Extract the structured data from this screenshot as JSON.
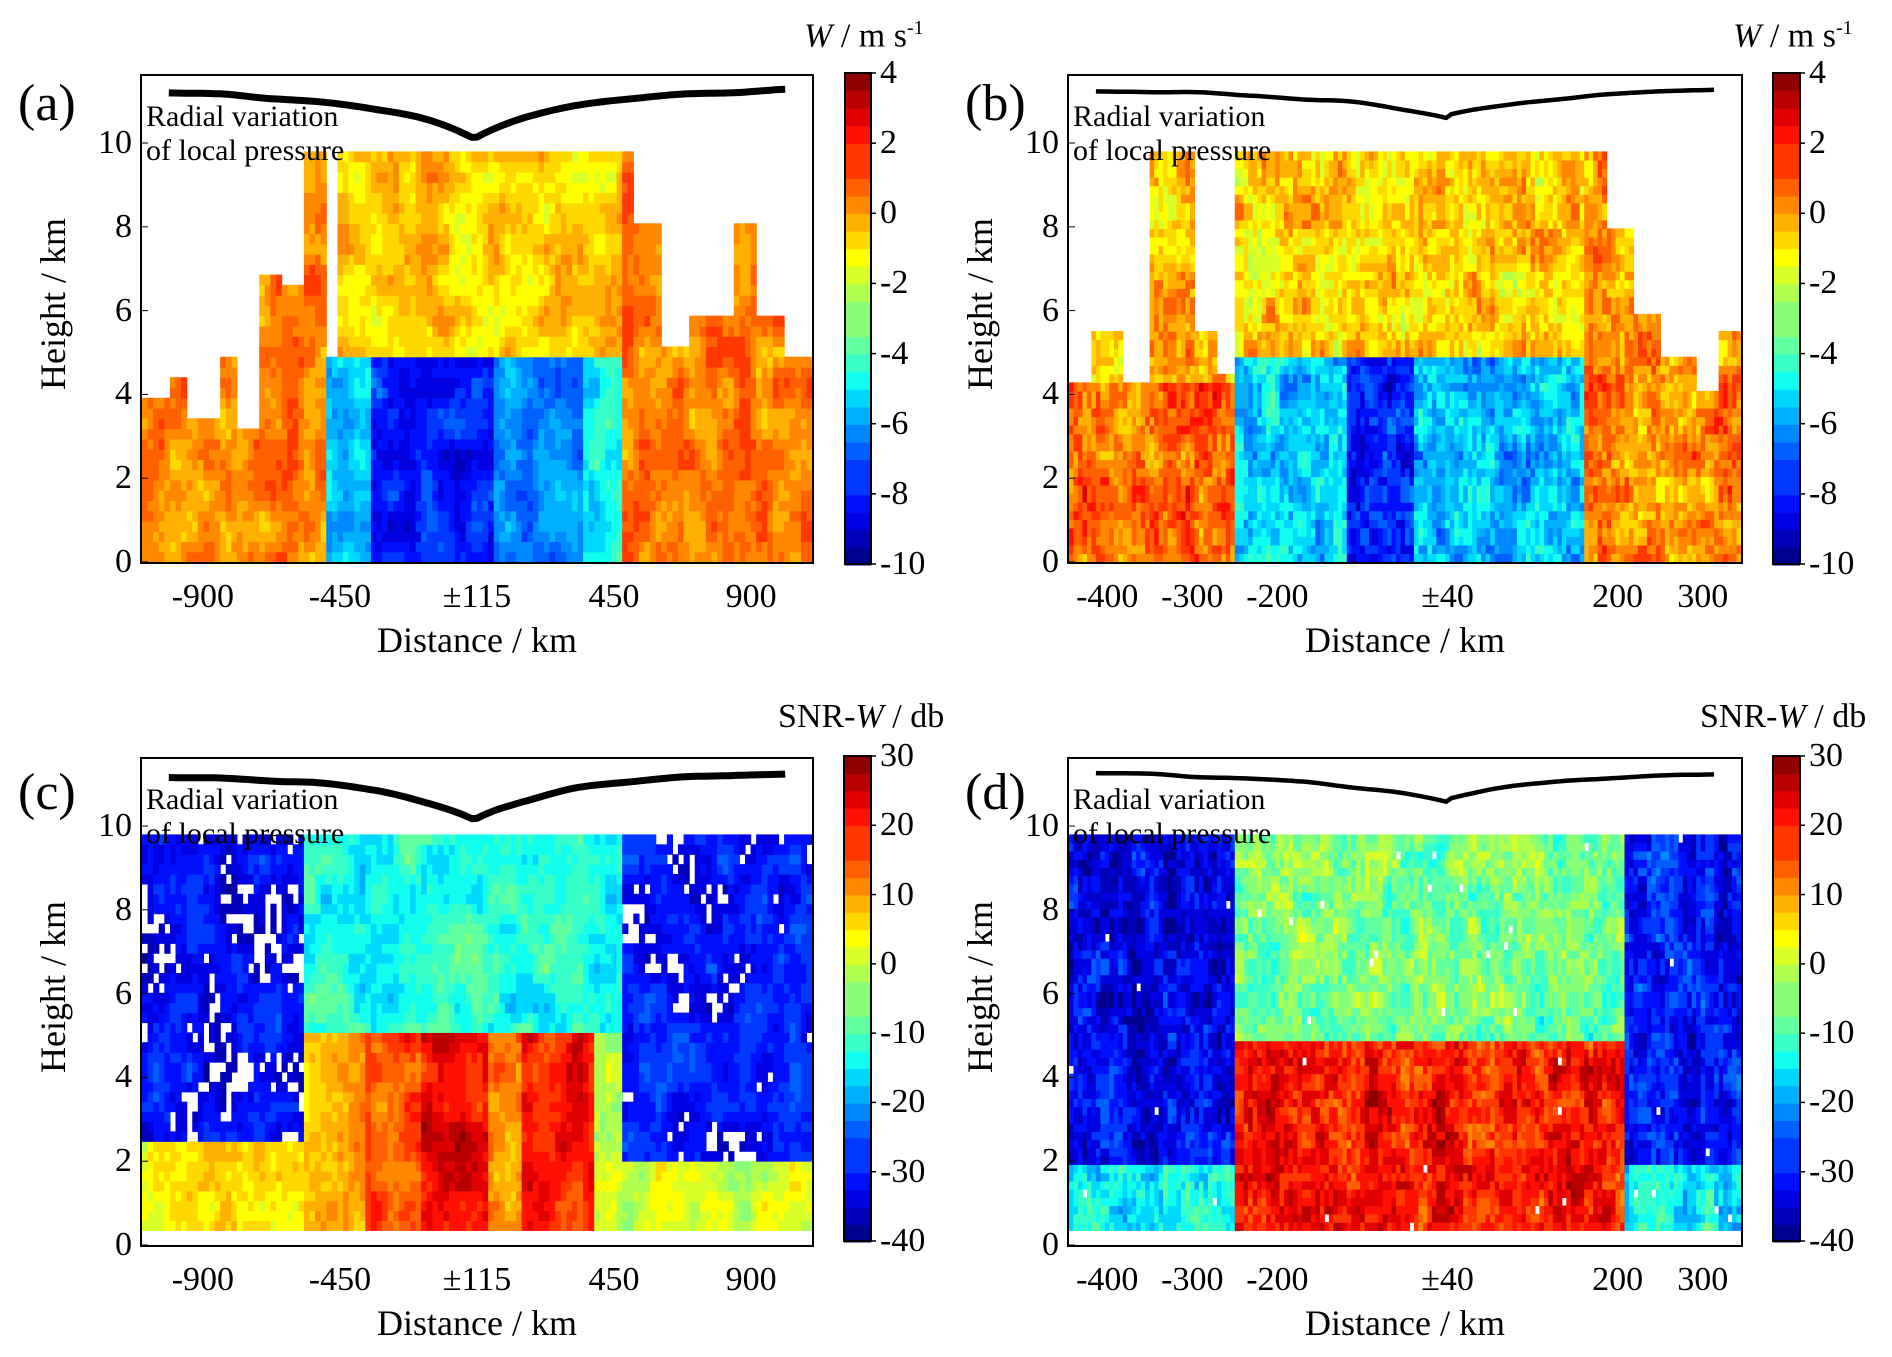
{
  "figure": {
    "panels": [
      "a",
      "b",
      "c",
      "d"
    ]
  },
  "chart_data": [
    {
      "id": "a",
      "type": "heatmap",
      "panel_label": "(a)",
      "annotation": [
        "Radial variation",
        "of local pressure"
      ],
      "xlabel": "Distance / km",
      "ylabel": "Height / km",
      "xticks": [
        "-900",
        "-450",
        "±115",
        "450",
        "900"
      ],
      "xtick_values": [
        -900,
        -450,
        0,
        450,
        900
      ],
      "xlim": [
        -1100,
        1100
      ],
      "yticks": [
        "0",
        "2",
        "4",
        "6",
        "8",
        "10"
      ],
      "ylim": [
        0,
        11.6
      ],
      "data_top_km": 9.8,
      "colorbar": {
        "title_var": "W",
        "title_units": " / m s",
        "title_sup": "-1",
        "ticks": [
          "4",
          "2",
          "0",
          "-2",
          "-4",
          "-6",
          "-8",
          "-10"
        ],
        "range": [
          -10,
          4
        ]
      },
      "style": "smooth",
      "background_value": 0.0,
      "value_regions": [
        {
          "x": [
            -1100,
            -500
          ],
          "y": [
            0,
            9.8
          ],
          "value": 0.4,
          "note": "orange updraft/weak flow outer left"
        },
        {
          "x": [
            -500,
            -350
          ],
          "y": [
            0,
            5
          ],
          "value": -5.5,
          "note": "cyan downward"
        },
        {
          "x": [
            -350,
            60
          ],
          "y": [
            0,
            5
          ],
          "value": -7.8,
          "note": "blue strong downward core"
        },
        {
          "x": [
            60,
            340
          ],
          "y": [
            0,
            5
          ],
          "value": -6.2
        },
        {
          "x": [
            340,
            470
          ],
          "y": [
            0,
            5
          ],
          "value": -4.8
        },
        {
          "x": [
            -500,
            470
          ],
          "y": [
            5,
            9.8
          ],
          "value": -0.6,
          "note": "yellow-orange aloft"
        },
        {
          "x": [
            470,
            1100
          ],
          "y": [
            0,
            9.8
          ],
          "value": 0.5,
          "note": "orange outer right"
        }
      ],
      "missing_ceiling_km": [
        {
          "x": -1100,
          "top": 3.9
        },
        {
          "x": -1000,
          "top": 4.4
        },
        {
          "x": -950,
          "top": 3.4
        },
        {
          "x": -850,
          "top": 5.0
        },
        {
          "x": -780,
          "top": 3.1
        },
        {
          "x": -720,
          "top": 6.8
        },
        {
          "x": -640,
          "top": 6.5
        },
        {
          "x": -560,
          "top": 9.8
        },
        {
          "x": -500,
          "top": 5.0
        },
        {
          "x": -450,
          "top": 9.8
        },
        {
          "x": 470,
          "top": 9.8
        },
        {
          "x": 520,
          "top": 8.0
        },
        {
          "x": 600,
          "top": 5.2
        },
        {
          "x": 700,
          "top": 5.8
        },
        {
          "x": 850,
          "top": 8.1
        },
        {
          "x": 920,
          "top": 6.0
        },
        {
          "x": 1000,
          "top": 5.0
        }
      ],
      "pressure_curve": {
        "min_x": 0,
        "shape": "V-shaped dip centered near ±115 km"
      }
    },
    {
      "id": "b",
      "type": "heatmap",
      "panel_label": "(b)",
      "annotation": [
        "Radial variation",
        "of local pressure"
      ],
      "xlabel": "Distance / km",
      "ylabel": "Height / km",
      "xticks": [
        "-400",
        "-300",
        "-200",
        "±40",
        "200",
        "300"
      ],
      "xtick_values": [
        -400,
        -300,
        -200,
        0,
        200,
        300
      ],
      "xlim": [
        -445,
        345
      ],
      "yticks": [
        "0",
        "2",
        "4",
        "6",
        "8",
        "10"
      ],
      "ylim": [
        0,
        11.6
      ],
      "data_top_km": 9.8,
      "colorbar": {
        "title_var": "W",
        "title_units": " / m s",
        "title_sup": "-1",
        "ticks": [
          "4",
          "2",
          "0",
          "-2",
          "-4",
          "-6",
          "-8",
          "-10"
        ],
        "range": [
          -10,
          4
        ]
      },
      "style": "blocky",
      "value_regions": [
        {
          "x": [
            -445,
            -250
          ],
          "y": [
            0,
            4.3
          ],
          "value": 0.8,
          "note": "orange-red lower left"
        },
        {
          "x": [
            -445,
            -250
          ],
          "y": [
            4.3,
            9.8
          ],
          "value": -0.6
        },
        {
          "x": [
            -250,
            -120
          ],
          "y": [
            0,
            4.8
          ],
          "value": -5.3,
          "note": "cyan"
        },
        {
          "x": [
            -120,
            -40
          ],
          "y": [
            0,
            4.8
          ],
          "value": -8.2,
          "note": "blue core"
        },
        {
          "x": [
            -40,
            160
          ],
          "y": [
            0,
            4.8
          ],
          "value": -5.8
        },
        {
          "x": [
            -250,
            160
          ],
          "y": [
            4.8,
            9.8
          ],
          "value": -0.7,
          "note": "yellow-orange aloft"
        },
        {
          "x": [
            160,
            345
          ],
          "y": [
            0,
            9.8
          ],
          "value": 0.3,
          "note": "orange right"
        }
      ],
      "missing_ceiling_km": [
        {
          "x": -445,
          "top": 4.2
        },
        {
          "x": -420,
          "top": 5.6
        },
        {
          "x": -380,
          "top": 4.3
        },
        {
          "x": -350,
          "top": 9.7
        },
        {
          "x": -300,
          "top": 5.6
        },
        {
          "x": -270,
          "top": 4.5
        },
        {
          "x": -250,
          "top": 9.8
        },
        {
          "x": 170,
          "top": 9.8
        },
        {
          "x": 185,
          "top": 8.0
        },
        {
          "x": 220,
          "top": 6.0
        },
        {
          "x": 250,
          "top": 4.9
        },
        {
          "x": 290,
          "top": 4.0
        },
        {
          "x": 320,
          "top": 5.6
        }
      ],
      "pressure_curve": {
        "min_x": 0,
        "shape": "shallow dip centered near ±40 km"
      }
    },
    {
      "id": "c",
      "type": "heatmap",
      "panel_label": "(c)",
      "annotation": [
        "Radial variation",
        "of local pressure"
      ],
      "xlabel": "Distance / km",
      "ylabel": "Height / km",
      "xticks": [
        "-900",
        "-450",
        "±115",
        "450",
        "900"
      ],
      "xtick_values": [
        -900,
        -450,
        0,
        450,
        900
      ],
      "xlim": [
        -1100,
        1100
      ],
      "yticks": [
        "0",
        "2",
        "4",
        "6",
        "8",
        "10"
      ],
      "ylim": [
        0,
        11.6
      ],
      "data_top_km": 9.8,
      "data_bottom_km": 0.35,
      "colorbar": {
        "title_var": "W",
        "title_prefix": "SNR-",
        "title_units": " / db",
        "title_sup": "",
        "ticks": [
          "30",
          "20",
          "10",
          "0",
          "-10",
          "-20",
          "-30",
          "-40"
        ],
        "range": [
          -40,
          30
        ]
      },
      "style": "smooth",
      "value_regions": [
        {
          "x": [
            -1100,
            -570
          ],
          "y": [
            0.35,
            2.5
          ],
          "value": 5,
          "note": "orange/yellow near surface"
        },
        {
          "x": [
            -1100,
            -570
          ],
          "y": [
            2.5,
            9.8
          ],
          "value": -32,
          "note": "blue, sparse"
        },
        {
          "x": [
            -570,
            -360
          ],
          "y": [
            0.35,
            5
          ],
          "value": 8
        },
        {
          "x": [
            -360,
            -180
          ],
          "y": [
            0.35,
            5
          ],
          "value": 16
        },
        {
          "x": [
            -180,
            40
          ],
          "y": [
            0.35,
            5
          ],
          "value": 22,
          "note": "red core"
        },
        {
          "x": [
            40,
            150
          ],
          "y": [
            0.35,
            9.8
          ],
          "value": 12
        },
        {
          "x": [
            150,
            380
          ],
          "y": [
            0.35,
            5
          ],
          "value": 20
        },
        {
          "x": [
            -570,
            470
          ],
          "y": [
            5,
            9.8
          ],
          "value": -12,
          "note": "cyan/green aloft"
        },
        {
          "x": [
            470,
            1100
          ],
          "y": [
            0.35,
            2
          ],
          "value": 0
        },
        {
          "x": [
            470,
            1100
          ],
          "y": [
            2,
            9.8
          ],
          "value": -30
        }
      ],
      "pressure_curve": {
        "min_x": 0,
        "shape": "V-shaped dip centered near ±115 km"
      }
    },
    {
      "id": "d",
      "type": "heatmap",
      "panel_label": "(d)",
      "annotation": [
        "Radial variation",
        "of local pressure"
      ],
      "xlabel": "Distance / km",
      "ylabel": "Height / km",
      "xticks": [
        "-400",
        "-300",
        "-200",
        "±40",
        "200",
        "300"
      ],
      "xtick_values": [
        -400,
        -300,
        -200,
        0,
        200,
        300
      ],
      "xlim": [
        -445,
        345
      ],
      "yticks": [
        "0",
        "2",
        "4",
        "6",
        "8",
        "10"
      ],
      "ylim": [
        0,
        11.6
      ],
      "data_top_km": 9.8,
      "data_bottom_km": 0.35,
      "colorbar": {
        "title_var": "W",
        "title_prefix": "SNR-",
        "title_units": " / db",
        "title_sup": "",
        "ticks": [
          "30",
          "20",
          "10",
          "0",
          "-10",
          "-20",
          "-30",
          "-40"
        ],
        "range": [
          -40,
          30
        ]
      },
      "style": "blocky",
      "value_regions": [
        {
          "x": [
            -445,
            -250
          ],
          "y": [
            0.35,
            2
          ],
          "value": -14
        },
        {
          "x": [
            -445,
            -250
          ],
          "y": [
            2,
            9.8
          ],
          "value": -32,
          "note": "blue"
        },
        {
          "x": [
            -250,
            210
          ],
          "y": [
            0.35,
            4.9
          ],
          "value": 20,
          "note": "red core"
        },
        {
          "x": [
            -250,
            210
          ],
          "y": [
            4.9,
            9.8
          ],
          "value": -6,
          "note": "green/yellow aloft"
        },
        {
          "x": [
            210,
            345
          ],
          "y": [
            0.35,
            2
          ],
          "value": -14
        },
        {
          "x": [
            210,
            345
          ],
          "y": [
            2,
            9.8
          ],
          "value": -30
        }
      ],
      "pressure_curve": {
        "min_x": 0,
        "shape": "shallow dip centered near ±40 km"
      }
    }
  ]
}
